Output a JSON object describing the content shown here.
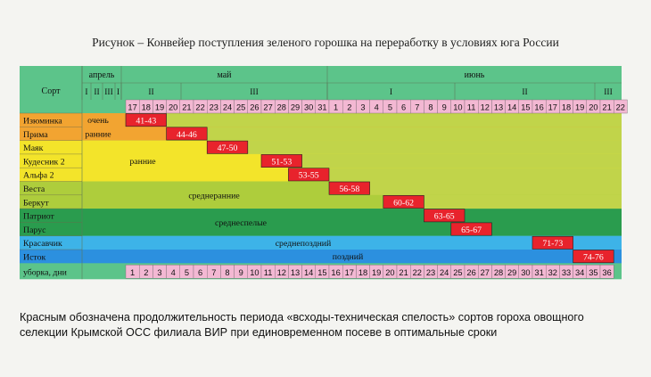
{
  "figure": {
    "title": "Рисунок – Конвейер поступления зеленого горошка на переработку в условиях юга России",
    "caption": "Красным обозначена продолжительность периода «всходы-техническая спелость» сортов гороха овощного селекции Крымской ОСС филиала ВИР при единовременном посеве в оптимальные сроки"
  },
  "chart_data": {
    "type": "table",
    "header": {
      "sort_label": "Сорт",
      "months": [
        {
          "name": "апрель",
          "decades": [
            "I",
            "II",
            "III",
            "I"
          ]
        },
        {
          "name": "май",
          "decades": [
            "II",
            "III"
          ]
        },
        {
          "name": "июнь",
          "decades": [
            "I",
            "II",
            "III"
          ]
        }
      ],
      "days": [
        "17",
        "18",
        "19",
        "20",
        "21",
        "22",
        "23",
        "24",
        "25",
        "26",
        "27",
        "28",
        "29",
        "30",
        "31",
        "1",
        "2",
        "3",
        "4",
        "5",
        "6",
        "7",
        "8",
        "9",
        "10",
        "11",
        "12",
        "13",
        "14",
        "15",
        "16",
        "17",
        "18",
        "19",
        "20",
        "21",
        "22"
      ]
    },
    "varieties": [
      {
        "name": "Изюминка",
        "range": "41-43",
        "start_day": 1
      },
      {
        "name": "Прима",
        "range": "44-46",
        "start_day": 4
      },
      {
        "name": "Маяк",
        "range": "47-50",
        "start_day": 7
      },
      {
        "name": "Кудесник 2",
        "range": "51-53",
        "start_day": 11
      },
      {
        "name": "Альфа 2",
        "range": "53-55",
        "start_day": 13
      },
      {
        "name": "Веста",
        "range": "56-58",
        "start_day": 16
      },
      {
        "name": "Беркут",
        "range": "60-62",
        "start_day": 20
      },
      {
        "name": "Патриот",
        "range": "63-65",
        "start_day": 23
      },
      {
        "name": "Парус",
        "range": "65-67",
        "start_day": 25
      },
      {
        "name": "Красавчик",
        "range": "71-73",
        "start_day": 31
      },
      {
        "name": "Исток",
        "range": "74-76",
        "start_day": 34
      }
    ],
    "groups": [
      {
        "label": "очень ранние",
        "rows": [
          0,
          1
        ],
        "color": "#f2a431"
      },
      {
        "label": "ранние",
        "rows": [
          2,
          3,
          4
        ],
        "color": "#f3e42a"
      },
      {
        "label": "среднеранние",
        "rows": [
          5,
          6
        ],
        "color": "#aecd3c"
      },
      {
        "label": "среднеспелые",
        "rows": [
          7,
          8
        ],
        "color": "#2a9c4e"
      },
      {
        "label": "среднепоздний",
        "rows": [
          9
        ],
        "color": "#3db3e8"
      },
      {
        "label": "поздний",
        "rows": [
          10
        ],
        "color": "#2c90df"
      }
    ],
    "harvest": {
      "label": "уборка, дни",
      "days": [
        "1",
        "2",
        "3",
        "4",
        "5",
        "6",
        "7",
        "8",
        "9",
        "10",
        "11",
        "12",
        "13",
        "14",
        "15",
        "16",
        "17",
        "18",
        "19",
        "20",
        "21",
        "22",
        "23",
        "24",
        "25",
        "26",
        "27",
        "28",
        "29",
        "30",
        "31",
        "32",
        "33",
        "34",
        "35",
        "36"
      ]
    },
    "colors": {
      "table_green": "#5cc48a",
      "day_pink": "#f3b8d3",
      "period_red": "#e8232c",
      "field": "#c1d44a"
    }
  }
}
